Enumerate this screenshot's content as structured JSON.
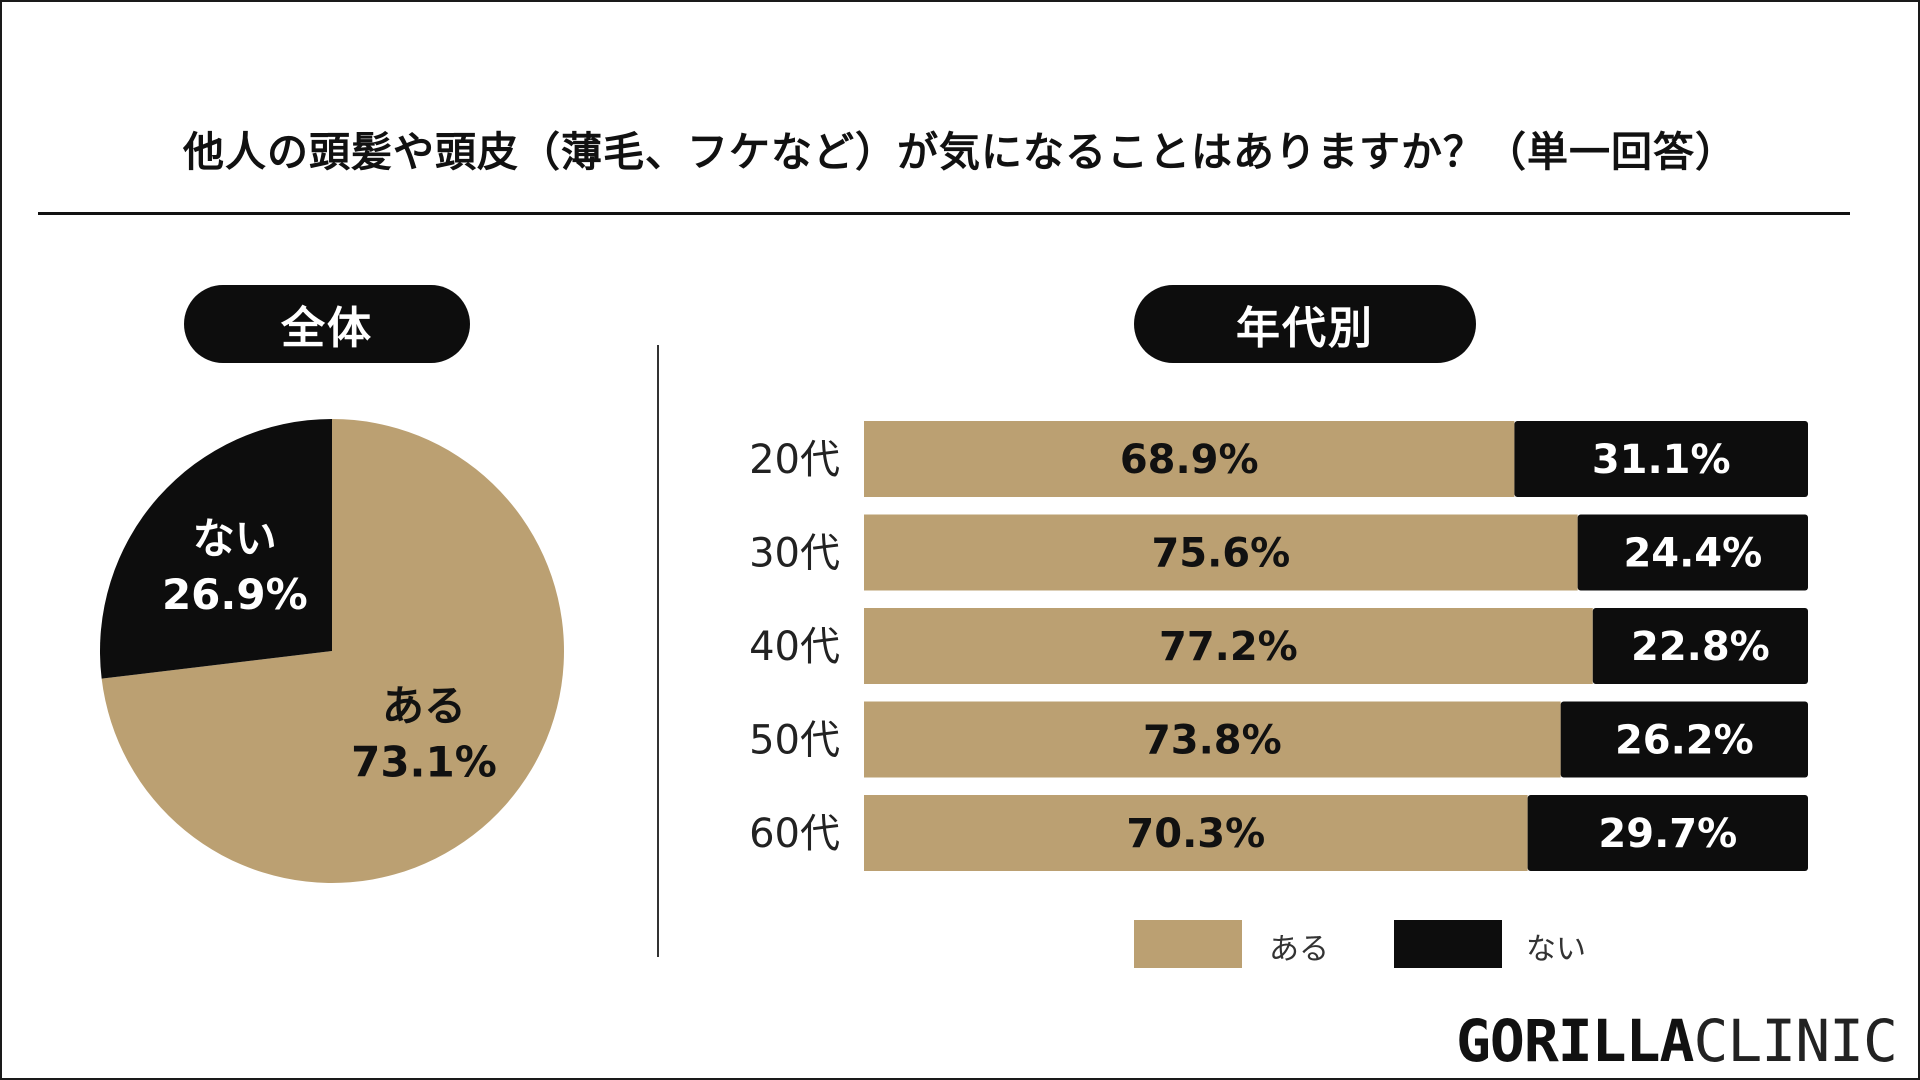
{
  "title": "他人の頭髪や頭皮（薄毛、フケなど）が気になることはありますか？（単一回答）",
  "sections": {
    "overall": "全体",
    "by_age": "年代別"
  },
  "colors": {
    "yes": "#BBA072",
    "no": "#0D0D0D",
    "label_dark": "#111111",
    "label_light": "#FFFFFF"
  },
  "chart_data": [
    {
      "type": "pie",
      "title": "全体",
      "slices": [
        {
          "label": "ある",
          "value": 73.1,
          "value_label": "73.1%",
          "color": "#BBA072"
        },
        {
          "label": "ない",
          "value": 26.9,
          "value_label": "26.9%",
          "color": "#0D0D0D"
        }
      ]
    },
    {
      "type": "bar",
      "orientation": "horizontal",
      "stacked": true,
      "title": "年代別",
      "categories": [
        "20代",
        "30代",
        "40代",
        "50代",
        "60代"
      ],
      "series": [
        {
          "name": "ある",
          "color": "#BBA072",
          "values": [
            68.9,
            75.6,
            77.2,
            73.8,
            70.3
          ],
          "labels": [
            "68.9%",
            "75.6%",
            "77.2%",
            "73.8%",
            "70.3%"
          ]
        },
        {
          "name": "ない",
          "color": "#0D0D0D",
          "values": [
            31.1,
            24.4,
            22.8,
            26.2,
            29.7
          ],
          "labels": [
            "31.1%",
            "24.4%",
            "22.8%",
            "26.2%",
            "29.7%"
          ]
        }
      ],
      "xlim": [
        0,
        100
      ],
      "legend": {
        "position": "bottom",
        "items": [
          "ある",
          "ない"
        ]
      }
    }
  ],
  "logo": {
    "part1": "GORILLA",
    "part2": "CLINIC"
  }
}
